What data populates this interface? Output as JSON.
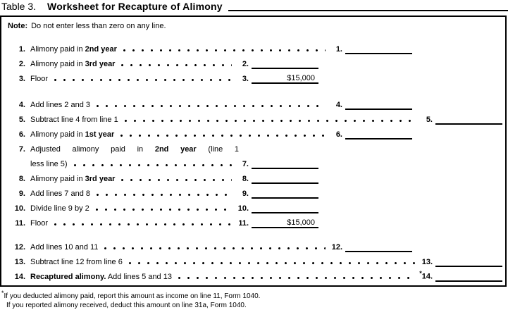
{
  "colors": {
    "ink": "#000000",
    "paper": "#ffffff"
  },
  "title": {
    "label": "Table 3.",
    "heading": "Worksheet for Recapture of Alimony"
  },
  "note": {
    "label": "Note:",
    "text": "Do not enter less than zero on any line."
  },
  "worksheet": {
    "rows": [
      {
        "num": "1.",
        "pre": "Alimony paid in ",
        "bold": "2nd year",
        "post": "",
        "answer_num": "1.",
        "star": "",
        "value": ""
      },
      {
        "num": "2.",
        "pre": "Alimony paid in ",
        "bold": "3rd year",
        "post": "",
        "answer_num": "2.",
        "star": "",
        "value": ""
      },
      {
        "num": "3.",
        "pre": "Floor",
        "bold": "",
        "post": "",
        "answer_num": "3.",
        "star": "",
        "value": "$15,000"
      },
      {
        "num": "4.",
        "pre": "Add lines 2 and 3",
        "bold": "",
        "post": "",
        "answer_num": "4.",
        "star": "",
        "value": ""
      },
      {
        "num": "5.",
        "pre": "Subtract line 4 from line 1",
        "bold": "",
        "post": "",
        "answer_num": "5.",
        "star": "",
        "value": ""
      },
      {
        "num": "6.",
        "pre": "Alimony paid in ",
        "bold": "1st year",
        "post": "",
        "answer_num": "6.",
        "star": "",
        "value": ""
      },
      {
        "num": "7.",
        "line1_pre": "Adjusted alimony paid in ",
        "line1_bold": "2nd year",
        "line1_post": " (line 1",
        "line2": "less line 5)",
        "answer_num": "7.",
        "star": "",
        "value": ""
      },
      {
        "num": "8.",
        "pre": "Alimony paid in ",
        "bold": "3rd year",
        "post": "",
        "answer_num": "8.",
        "star": "",
        "value": ""
      },
      {
        "num": "9.",
        "pre": "Add lines 7 and 8",
        "bold": "",
        "post": "",
        "answer_num": "9.",
        "star": "",
        "value": ""
      },
      {
        "num": "10.",
        "pre": "Divide line 9 by 2",
        "bold": "",
        "post": "",
        "answer_num": "10.",
        "star": "",
        "value": ""
      },
      {
        "num": "11.",
        "pre": "Floor",
        "bold": "",
        "post": "",
        "answer_num": "11.",
        "star": "",
        "value": "$15,000"
      },
      {
        "num": "12.",
        "pre": "Add lines 10 and 11",
        "bold": "",
        "post": "",
        "answer_num": "12.",
        "star": "",
        "value": ""
      },
      {
        "num": "13.",
        "pre": "Subtract line 12 from line 6",
        "bold": "",
        "post": "",
        "answer_num": "13.",
        "star": "",
        "value": ""
      },
      {
        "num": "14.",
        "pre": "",
        "bold": "Recaptured alimony.",
        "post": " Add lines 5 and 13",
        "answer_num": "14.",
        "star": "*",
        "value": ""
      }
    ]
  },
  "footnote": {
    "star": "*",
    "line1": "If you deducted alimony paid, report this amount as income on line 11, Form 1040.",
    "line2": "If you reported alimony received, deduct this amount on line 31a, Form 1040."
  }
}
